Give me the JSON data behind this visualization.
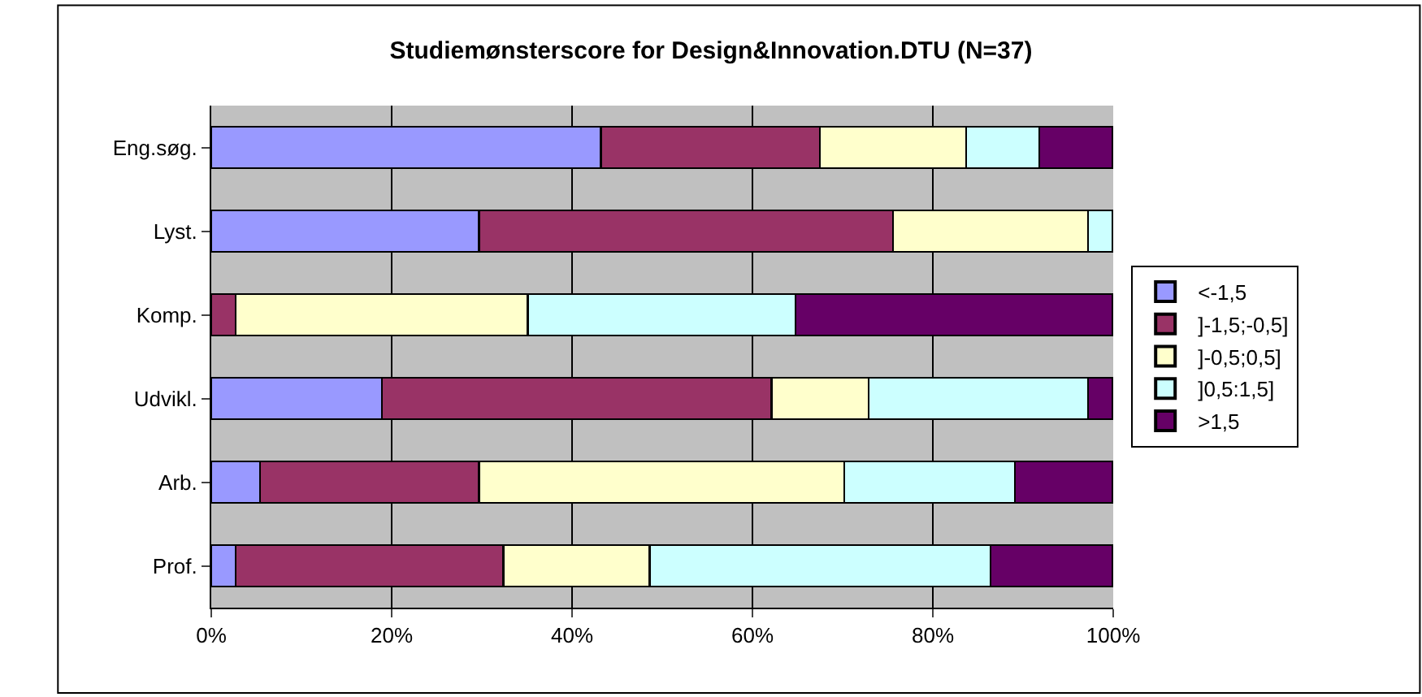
{
  "chart_data": {
    "type": "bar",
    "orientation": "horizontal",
    "stacked": true,
    "title": "Studiemønsterscore for Design&Innovation.DTU (N=37)",
    "categories": [
      "Eng.søg.",
      "Lyst.",
      "Komp.",
      "Udvikl.",
      "Arb.",
      "Prof."
    ],
    "series": [
      {
        "name": "<-1,5",
        "color": "#9999ff",
        "values": [
          43.2,
          29.7,
          0,
          18.9,
          5.4,
          2.7
        ]
      },
      {
        "name": "]-1,5;-0,5]",
        "color": "#993366",
        "values": [
          24.3,
          45.9,
          2.7,
          43.2,
          24.3,
          29.7
        ]
      },
      {
        "name": "]-0,5;0,5]",
        "color": "#ffffcc",
        "values": [
          16.2,
          21.6,
          32.4,
          10.8,
          40.5,
          16.2
        ]
      },
      {
        "name": "]0,5:1,5]",
        "color": "#ccffff",
        "values": [
          8.1,
          2.7,
          29.7,
          24.3,
          18.9,
          37.8
        ]
      },
      {
        "name": ">1,5",
        "color": "#660066",
        "values": [
          8.1,
          0,
          35.1,
          2.7,
          10.8,
          13.5
        ]
      }
    ],
    "xlim": [
      0,
      100
    ],
    "xticks": [
      {
        "value": 0,
        "label": "0%"
      },
      {
        "value": 20,
        "label": "20%"
      },
      {
        "value": 40,
        "label": "40%"
      },
      {
        "value": 60,
        "label": "60%"
      },
      {
        "value": 80,
        "label": "80%"
      },
      {
        "value": 100,
        "label": "100%"
      }
    ],
    "grid": "x",
    "legend": "right"
  }
}
